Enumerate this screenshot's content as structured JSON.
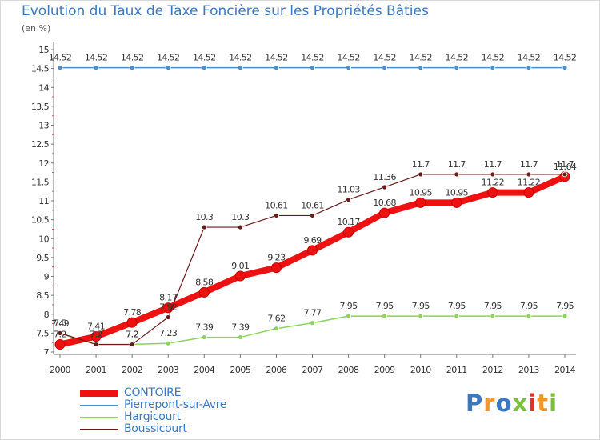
{
  "title": "Evolution du Taux de Taxe Foncière sur les Propriétés Bâties",
  "unit": "(en %)",
  "logo": {
    "text": "Proxiti",
    "colors": [
      "#3a78c3",
      "#f29727",
      "#3a78c3",
      "#7cbf3b",
      "#e2312d",
      "#f29727",
      "#7cbf3b"
    ]
  },
  "chart_data": {
    "type": "line",
    "title": "Evolution du Taux de Taxe Foncière sur les Propriétés Bâties",
    "ylabel": "(en %)",
    "xlabel": "",
    "x": [
      "2000",
      "2001",
      "2002",
      "2003",
      "2004",
      "2005",
      "2006",
      "2007",
      "2008",
      "2009",
      "2010",
      "2011",
      "2012",
      "2013",
      "2014"
    ],
    "ylim": [
      7,
      15
    ],
    "yticks": [
      "7",
      "7.5",
      "8",
      "8.5",
      "9",
      "9.5",
      "10",
      "10.5",
      "11",
      "11.5",
      "12",
      "12.5",
      "13",
      "13.5",
      "14",
      "14.5",
      "15"
    ],
    "grid": false,
    "legend_position": "bottom-left",
    "series": [
      {
        "name": "CONTOIRE",
        "color": "#ee1111",
        "values": [
          7.2,
          7.41,
          7.78,
          8.17,
          8.58,
          9.01,
          9.23,
          9.69,
          10.17,
          10.68,
          10.95,
          10.95,
          11.22,
          11.22,
          11.64
        ],
        "labels": [
          "7.2",
          "7.41",
          "7.78",
          "8.17",
          "8.58",
          "9.01",
          "9.23",
          "9.69",
          "10.17",
          "10.68",
          "10.95",
          "10.95",
          "11.22",
          "11.22",
          "11.64"
        ]
      },
      {
        "name": "Pierrepont-sur-Avre",
        "color": "#4b8ec9",
        "values": [
          14.52,
          14.52,
          14.52,
          14.52,
          14.52,
          14.52,
          14.52,
          14.52,
          14.52,
          14.52,
          14.52,
          14.52,
          14.52,
          14.52,
          14.52
        ],
        "labels": [
          "14.52",
          "14.52",
          "14.52",
          "14.52",
          "14.52",
          "14.52",
          "14.52",
          "14.52",
          "14.52",
          "14.52",
          "14.52",
          "14.52",
          "14.52",
          "14.52",
          "14.52"
        ]
      },
      {
        "name": "Hargicourt",
        "color": "#8cd35a",
        "values": [
          7.49,
          7.2,
          7.2,
          7.23,
          7.39,
          7.39,
          7.62,
          7.77,
          7.95,
          7.95,
          7.95,
          7.95,
          7.95,
          7.95,
          7.95
        ],
        "labels": [
          "7.49",
          "7.2",
          "7.2",
          "7.23",
          "7.39",
          "7.39",
          "7.62",
          "7.77",
          "7.95",
          "7.95",
          "7.95",
          "7.95",
          "7.95",
          "7.95",
          "7.95"
        ]
      },
      {
        "name": "Boussicourt",
        "color": "#6b1a1a",
        "values": [
          7.5,
          7.2,
          7.2,
          7.92,
          10.3,
          10.3,
          10.61,
          10.61,
          11.03,
          11.36,
          11.7,
          11.7,
          11.7,
          11.7,
          11.7
        ],
        "labels": [
          "7.5",
          "7.2",
          "7.2",
          "7.92",
          "10.3",
          "10.3",
          "10.61",
          "10.61",
          "11.03",
          "11.36",
          "11.7",
          "11.7",
          "11.7",
          "11.7",
          "11.7"
        ]
      }
    ]
  }
}
